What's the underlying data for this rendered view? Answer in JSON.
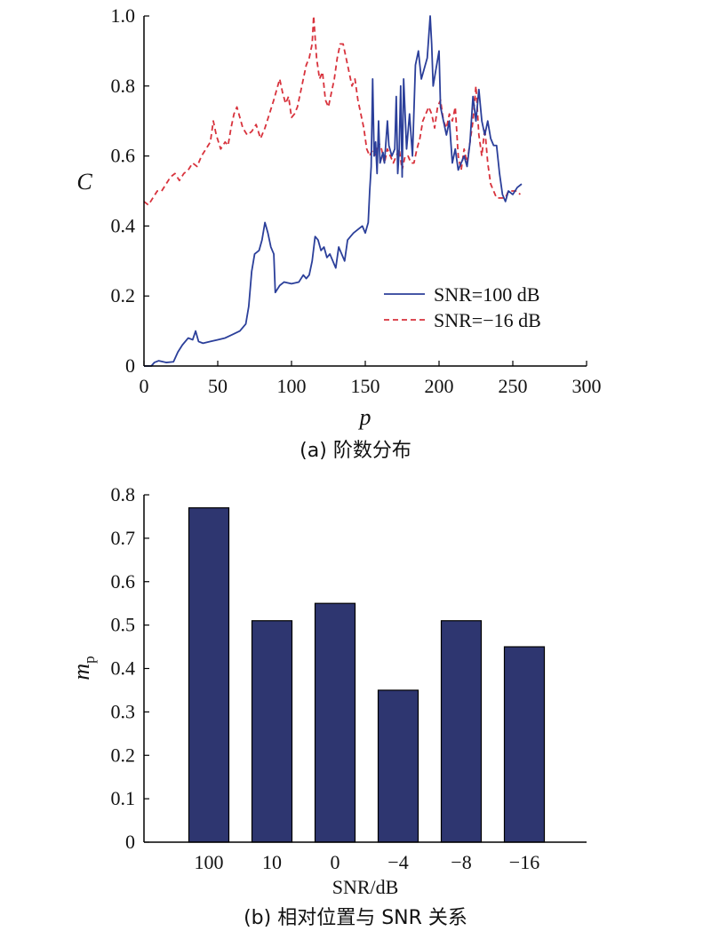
{
  "chart_data": [
    {
      "type": "line",
      "caption": "(a) 阶数分布",
      "xlabel": "p",
      "ylabel": "C",
      "xlim": [
        0,
        300
      ],
      "ylim": [
        0,
        1.0
      ],
      "x_ticks": [
        "0",
        "50",
        "100",
        "150",
        "200",
        "250",
        "300"
      ],
      "y_ticks": [
        "0",
        "0.2",
        "0.4",
        "0.6",
        "0.8",
        "1.0"
      ],
      "legend_position": "right-middle",
      "grid": false,
      "series": [
        {
          "name": "SNR=100 dB",
          "color": "#2b3f9a",
          "style": "solid",
          "points": [
            [
              0,
              0.0
            ],
            [
              5,
              0.0
            ],
            [
              7,
              0.01
            ],
            [
              10,
              0.015
            ],
            [
              15,
              0.01
            ],
            [
              20,
              0.012
            ],
            [
              23,
              0.04
            ],
            [
              26,
              0.06
            ],
            [
              30,
              0.08
            ],
            [
              33,
              0.075
            ],
            [
              35,
              0.1
            ],
            [
              37,
              0.07
            ],
            [
              40,
              0.065
            ],
            [
              45,
              0.07
            ],
            [
              50,
              0.075
            ],
            [
              55,
              0.08
            ],
            [
              60,
              0.09
            ],
            [
              65,
              0.1
            ],
            [
              69,
              0.12
            ],
            [
              71,
              0.17
            ],
            [
              73,
              0.27
            ],
            [
              75,
              0.32
            ],
            [
              78,
              0.33
            ],
            [
              80,
              0.36
            ],
            [
              82,
              0.41
            ],
            [
              84,
              0.38
            ],
            [
              86,
              0.34
            ],
            [
              88,
              0.32
            ],
            [
              89,
              0.21
            ],
            [
              92,
              0.23
            ],
            [
              95,
              0.24
            ],
            [
              100,
              0.235
            ],
            [
              105,
              0.24
            ],
            [
              108,
              0.26
            ],
            [
              110,
              0.25
            ],
            [
              112,
              0.26
            ],
            [
              114,
              0.3
            ],
            [
              116,
              0.37
            ],
            [
              118,
              0.36
            ],
            [
              120,
              0.33
            ],
            [
              122,
              0.34
            ],
            [
              124,
              0.31
            ],
            [
              126,
              0.32
            ],
            [
              128,
              0.3
            ],
            [
              130,
              0.28
            ],
            [
              132,
              0.34
            ],
            [
              134,
              0.32
            ],
            [
              136,
              0.3
            ],
            [
              138,
              0.36
            ],
            [
              140,
              0.37
            ],
            [
              142,
              0.38
            ],
            [
              145,
              0.39
            ],
            [
              148,
              0.4
            ],
            [
              150,
              0.38
            ],
            [
              152,
              0.41
            ],
            [
              153,
              0.5
            ],
            [
              154,
              0.57
            ],
            [
              155,
              0.82
            ],
            [
              156,
              0.6
            ],
            [
              157,
              0.64
            ],
            [
              158,
              0.55
            ],
            [
              159,
              0.7
            ],
            [
              160,
              0.58
            ],
            [
              162,
              0.61
            ],
            [
              163,
              0.58
            ],
            [
              165,
              0.7
            ],
            [
              166,
              0.63
            ],
            [
              168,
              0.6
            ],
            [
              170,
              0.62
            ],
            [
              171,
              0.77
            ],
            [
              172,
              0.55
            ],
            [
              173,
              0.62
            ],
            [
              174,
              0.8
            ],
            [
              175,
              0.54
            ],
            [
              176,
              0.82
            ],
            [
              178,
              0.62
            ],
            [
              180,
              0.72
            ],
            [
              182,
              0.6
            ],
            [
              184,
              0.86
            ],
            [
              186,
              0.9
            ],
            [
              188,
              0.82
            ],
            [
              190,
              0.85
            ],
            [
              192,
              0.88
            ],
            [
              194,
              1.0
            ],
            [
              195,
              0.92
            ],
            [
              196,
              0.8
            ],
            [
              198,
              0.85
            ],
            [
              200,
              0.9
            ],
            [
              201,
              0.74
            ],
            [
              203,
              0.7
            ],
            [
              205,
              0.66
            ],
            [
              207,
              0.7
            ],
            [
              209,
              0.58
            ],
            [
              211,
              0.62
            ],
            [
              213,
              0.56
            ],
            [
              215,
              0.58
            ],
            [
              217,
              0.6
            ],
            [
              219,
              0.57
            ],
            [
              221,
              0.64
            ],
            [
              223,
              0.77
            ],
            [
              225,
              0.7
            ],
            [
              227,
              0.79
            ],
            [
              229,
              0.7
            ],
            [
              231,
              0.66
            ],
            [
              233,
              0.7
            ],
            [
              235,
              0.65
            ],
            [
              237,
              0.63
            ],
            [
              239,
              0.63
            ],
            [
              241,
              0.55
            ],
            [
              243,
              0.49
            ],
            [
              245,
              0.47
            ],
            [
              247,
              0.5
            ],
            [
              250,
              0.49
            ],
            [
              253,
              0.51
            ],
            [
              256,
              0.52
            ]
          ]
        },
        {
          "name": "SNR=−16 dB",
          "color": "#d8323c",
          "style": "dashed",
          "points": [
            [
              0,
              0.47
            ],
            [
              3,
              0.46
            ],
            [
              6,
              0.48
            ],
            [
              9,
              0.5
            ],
            [
              12,
              0.5
            ],
            [
              15,
              0.52
            ],
            [
              18,
              0.54
            ],
            [
              21,
              0.55
            ],
            [
              24,
              0.53
            ],
            [
              27,
              0.55
            ],
            [
              30,
              0.56
            ],
            [
              33,
              0.58
            ],
            [
              36,
              0.57
            ],
            [
              39,
              0.6
            ],
            [
              42,
              0.62
            ],
            [
              45,
              0.64
            ],
            [
              47,
              0.7
            ],
            [
              49,
              0.66
            ],
            [
              52,
              0.62
            ],
            [
              55,
              0.64
            ],
            [
              57,
              0.63
            ],
            [
              59,
              0.68
            ],
            [
              61,
              0.72
            ],
            [
              63,
              0.74
            ],
            [
              65,
              0.71
            ],
            [
              67,
              0.68
            ],
            [
              70,
              0.66
            ],
            [
              73,
              0.67
            ],
            [
              76,
              0.69
            ],
            [
              79,
              0.65
            ],
            [
              82,
              0.68
            ],
            [
              85,
              0.72
            ],
            [
              88,
              0.76
            ],
            [
              90,
              0.79
            ],
            [
              92,
              0.82
            ],
            [
              94,
              0.78
            ],
            [
              96,
              0.75
            ],
            [
              98,
              0.77
            ],
            [
              100,
              0.71
            ],
            [
              102,
              0.72
            ],
            [
              104,
              0.74
            ],
            [
              106,
              0.78
            ],
            [
              108,
              0.82
            ],
            [
              110,
              0.86
            ],
            [
              112,
              0.88
            ],
            [
              114,
              0.92
            ],
            [
              115,
              1.0
            ],
            [
              117,
              0.88
            ],
            [
              119,
              0.82
            ],
            [
              121,
              0.84
            ],
            [
              123,
              0.76
            ],
            [
              125,
              0.74
            ],
            [
              127,
              0.78
            ],
            [
              129,
              0.82
            ],
            [
              131,
              0.88
            ],
            [
              133,
              0.92
            ],
            [
              135,
              0.92
            ],
            [
              137,
              0.88
            ],
            [
              139,
              0.84
            ],
            [
              141,
              0.8
            ],
            [
              143,
              0.82
            ],
            [
              145,
              0.76
            ],
            [
              147,
              0.72
            ],
            [
              149,
              0.68
            ],
            [
              151,
              0.62
            ],
            [
              153,
              0.6
            ],
            [
              155,
              0.62
            ],
            [
              157,
              0.6
            ],
            [
              159,
              0.64
            ],
            [
              161,
              0.62
            ],
            [
              163,
              0.58
            ],
            [
              165,
              0.62
            ],
            [
              167,
              0.6
            ],
            [
              169,
              0.58
            ],
            [
              171,
              0.6
            ],
            [
              173,
              0.62
            ],
            [
              175,
              0.56
            ],
            [
              177,
              0.6
            ],
            [
              179,
              0.6
            ],
            [
              181,
              0.58
            ],
            [
              183,
              0.58
            ],
            [
              185,
              0.62
            ],
            [
              187,
              0.65
            ],
            [
              189,
              0.7
            ],
            [
              191,
              0.72
            ],
            [
              193,
              0.74
            ],
            [
              195,
              0.72
            ],
            [
              197,
              0.68
            ],
            [
              199,
              0.74
            ],
            [
              201,
              0.76
            ],
            [
              203,
              0.7
            ],
            [
              205,
              0.68
            ],
            [
              207,
              0.72
            ],
            [
              209,
              0.7
            ],
            [
              211,
              0.74
            ],
            [
              213,
              0.6
            ],
            [
              215,
              0.56
            ],
            [
              217,
              0.62
            ],
            [
              219,
              0.58
            ],
            [
              221,
              0.64
            ],
            [
              223,
              0.7
            ],
            [
              225,
              0.8
            ],
            [
              227,
              0.66
            ],
            [
              229,
              0.6
            ],
            [
              231,
              0.68
            ],
            [
              233,
              0.58
            ],
            [
              235,
              0.52
            ],
            [
              237,
              0.5
            ],
            [
              239,
              0.48
            ],
            [
              241,
              0.48
            ],
            [
              243,
              0.48
            ],
            [
              245,
              0.48
            ],
            [
              247,
              0.5
            ],
            [
              249,
              0.5
            ],
            [
              251,
              0.5
            ],
            [
              253,
              0.5
            ],
            [
              255,
              0.49
            ]
          ]
        }
      ]
    },
    {
      "type": "bar",
      "caption": "(b) 相对位置与 SNR 关系",
      "xlabel": "SNR/dB",
      "ylabel": "m",
      "ylabel_sub": "p",
      "ylim": [
        0,
        0.8
      ],
      "y_ticks": [
        "0",
        "0.1",
        "0.2",
        "0.3",
        "0.4",
        "0.5",
        "0.6",
        "0.7",
        "0.8"
      ],
      "categories": [
        "100",
        "10",
        "0",
        "−4",
        "−8",
        "−16"
      ],
      "values": [
        0.77,
        0.51,
        0.55,
        0.35,
        0.51,
        0.45
      ],
      "bar_color": "#2e3670",
      "grid": false
    }
  ]
}
